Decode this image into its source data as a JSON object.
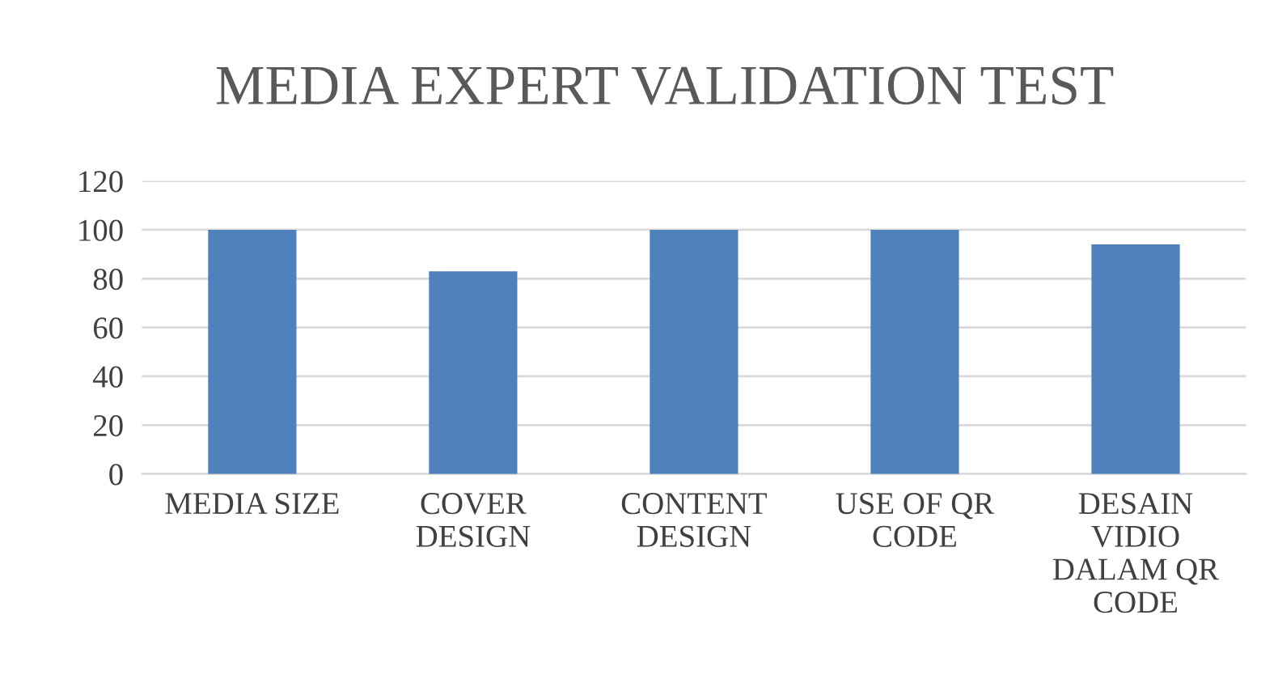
{
  "chart_data": {
    "type": "bar",
    "title": "MEDIA EXPERT VALIDATION TEST",
    "categories": [
      "MEDIA SIZE",
      "COVER\nDESIGN",
      "CONTENT\nDESIGN",
      "USE OF QR\nCODE",
      "DESAIN\nVIDIO\nDALAM QR\nCODE"
    ],
    "values": [
      100,
      83,
      100,
      100,
      94
    ],
    "color": "#4f81bd",
    "ylim": [
      0,
      120
    ],
    "yticks": [
      0,
      20,
      40,
      60,
      80,
      100,
      120
    ],
    "grid": "y",
    "legend": false
  }
}
